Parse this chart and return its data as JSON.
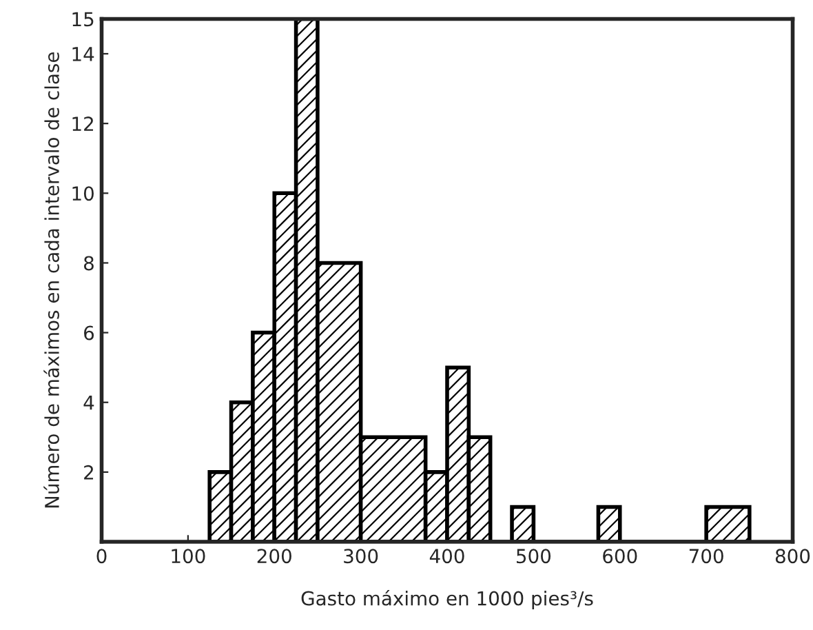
{
  "chart_data": {
    "type": "histogram",
    "xlabel": "Gasto máximo en 1000 pies³/s",
    "ylabel": "Número de máximos en cada intervalo de clase",
    "bins": [
      125,
      150,
      175,
      200,
      225,
      250,
      300,
      375,
      400,
      425,
      450,
      475,
      500,
      575,
      600,
      700,
      750
    ],
    "values": [
      2,
      4,
      6,
      10,
      15,
      8,
      3,
      2,
      5,
      3,
      0,
      1,
      0,
      1,
      0,
      1
    ],
    "color": "#000000",
    "xlim": [
      0,
      800
    ],
    "xticks": [
      0,
      100,
      200,
      300,
      400,
      500,
      600,
      700,
      800
    ],
    "ylim": [
      0,
      15
    ],
    "yticks": [
      {
        "value": 0,
        "label": null
      },
      2,
      4,
      6,
      8,
      10,
      12,
      14,
      15
    ],
    "grid": false
  }
}
